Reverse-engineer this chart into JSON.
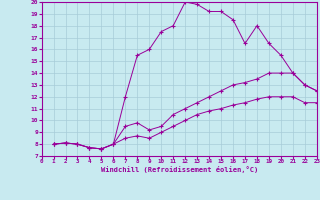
{
  "xlabel": "Windchill (Refroidissement éolien,°C)",
  "background_color": "#c8eaf0",
  "line_color": "#990099",
  "grid_color": "#a8ccd8",
  "xlim": [
    0,
    23
  ],
  "ylim": [
    7,
    20
  ],
  "xticks": [
    0,
    1,
    2,
    3,
    4,
    5,
    6,
    7,
    8,
    9,
    10,
    11,
    12,
    13,
    14,
    15,
    16,
    17,
    18,
    19,
    20,
    21,
    22,
    23
  ],
  "yticks": [
    7,
    8,
    9,
    10,
    11,
    12,
    13,
    14,
    15,
    16,
    17,
    18,
    19,
    20
  ],
  "line1_x": [
    1,
    2,
    3,
    4,
    5,
    6,
    7,
    8,
    9,
    10,
    11,
    12,
    13,
    14,
    15,
    16,
    17,
    18,
    19,
    20,
    21,
    22,
    23
  ],
  "line1_y": [
    8.0,
    8.1,
    8.0,
    7.7,
    7.6,
    8.0,
    12.0,
    15.5,
    16.0,
    17.5,
    18.0,
    20.0,
    19.8,
    19.2,
    19.2,
    18.5,
    16.5,
    18.0,
    16.5,
    15.5,
    14.0,
    13.0,
    12.5
  ],
  "line2_x": [
    1,
    2,
    3,
    4,
    5,
    6,
    7,
    8,
    9,
    10,
    11,
    12,
    13,
    14,
    15,
    16,
    17,
    18,
    19,
    20,
    21,
    22,
    23
  ],
  "line2_y": [
    8.0,
    8.1,
    8.0,
    7.7,
    7.6,
    8.0,
    9.5,
    9.8,
    9.2,
    9.5,
    10.5,
    11.0,
    11.5,
    12.0,
    12.5,
    13.0,
    13.2,
    13.5,
    14.0,
    14.0,
    14.0,
    13.0,
    12.5
  ],
  "line3_x": [
    1,
    2,
    3,
    4,
    5,
    6,
    7,
    8,
    9,
    10,
    11,
    12,
    13,
    14,
    15,
    16,
    17,
    18,
    19,
    20,
    21,
    22,
    23
  ],
  "line3_y": [
    8.0,
    8.1,
    8.0,
    7.7,
    7.6,
    8.0,
    8.5,
    8.7,
    8.5,
    9.0,
    9.5,
    10.0,
    10.5,
    10.8,
    11.0,
    11.3,
    11.5,
    11.8,
    12.0,
    12.0,
    12.0,
    11.5,
    11.5
  ]
}
